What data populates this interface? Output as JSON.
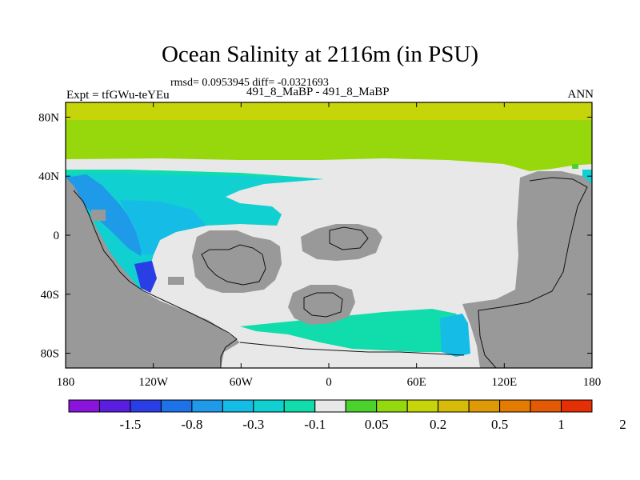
{
  "chart_data": {
    "type": "heatmap",
    "title": "Ocean Salinity at 2116m (in PSU)",
    "stats_line": "rmsd= 0.0953945 diff= -0.0321693",
    "subtitle": "491_8_MaBP - 491_8_MaBP",
    "left_label": "Expt = tfGWu-teYEu",
    "right_label": "ANN",
    "x_ticks": [
      "180",
      "120W",
      "60W",
      "0",
      "60E",
      "120E",
      "180"
    ],
    "x_tick_values": [
      -180,
      -120,
      -60,
      0,
      60,
      120,
      180
    ],
    "y_ticks": [
      "80N",
      "40N",
      "0",
      "40S",
      "80S"
    ],
    "y_tick_values": [
      80,
      40,
      0,
      -40,
      -80
    ],
    "xlim": [
      -180,
      180
    ],
    "ylim": [
      -90,
      90
    ],
    "colorbar": {
      "labels": [
        "-1.5",
        "-0.8",
        "-0.3",
        "-0.1",
        "0.05",
        "0.2",
        "0.5",
        "1",
        "2"
      ],
      "colors": [
        "#8a14dc",
        "#5a1ee0",
        "#2a3ee6",
        "#1e72e8",
        "#1e9ae8",
        "#14bce6",
        "#10d0d2",
        "#10dcac",
        "#e8e8e8",
        "#4cd22c",
        "#94d80e",
        "#c6d40a",
        "#d6bc08",
        "#e09a06",
        "#e47c04",
        "#e45a04",
        "#e43004"
      ]
    },
    "fill_colors": {
      "land": "#999999",
      "neutral": "#e8e8e8",
      "green": "#96d80c",
      "yellow_green": "#c6d40a",
      "green_light": "#4cd22c",
      "cyan": "#10d0d2",
      "teal": "#10dcac",
      "light_blue": "#14bce6",
      "blue": "#1e9ae8",
      "dark_blue": "#2a3ee6"
    }
  }
}
